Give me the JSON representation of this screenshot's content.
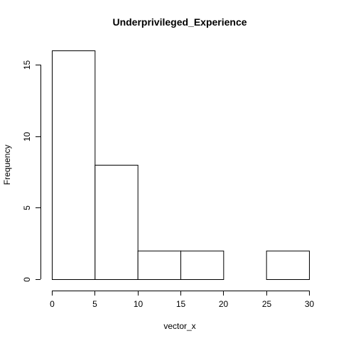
{
  "chart_data": {
    "type": "bar",
    "title": "Underprivileged_Experience",
    "xlabel": "vector_x",
    "ylabel": "Frequency",
    "bins": [
      [
        0,
        5
      ],
      [
        5,
        10
      ],
      [
        10,
        15
      ],
      [
        15,
        20
      ],
      [
        20,
        25
      ],
      [
        25,
        30
      ]
    ],
    "values": [
      16,
      8,
      2,
      2,
      0,
      2
    ],
    "xlim": [
      0,
      30
    ],
    "ylim": [
      0,
      16
    ],
    "xticks": [
      0,
      5,
      10,
      15,
      20,
      25,
      30
    ],
    "yticks": [
      0,
      5,
      10,
      15
    ],
    "grid": false,
    "bar_fill": "#ffffff",
    "bar_stroke": "#000000"
  }
}
